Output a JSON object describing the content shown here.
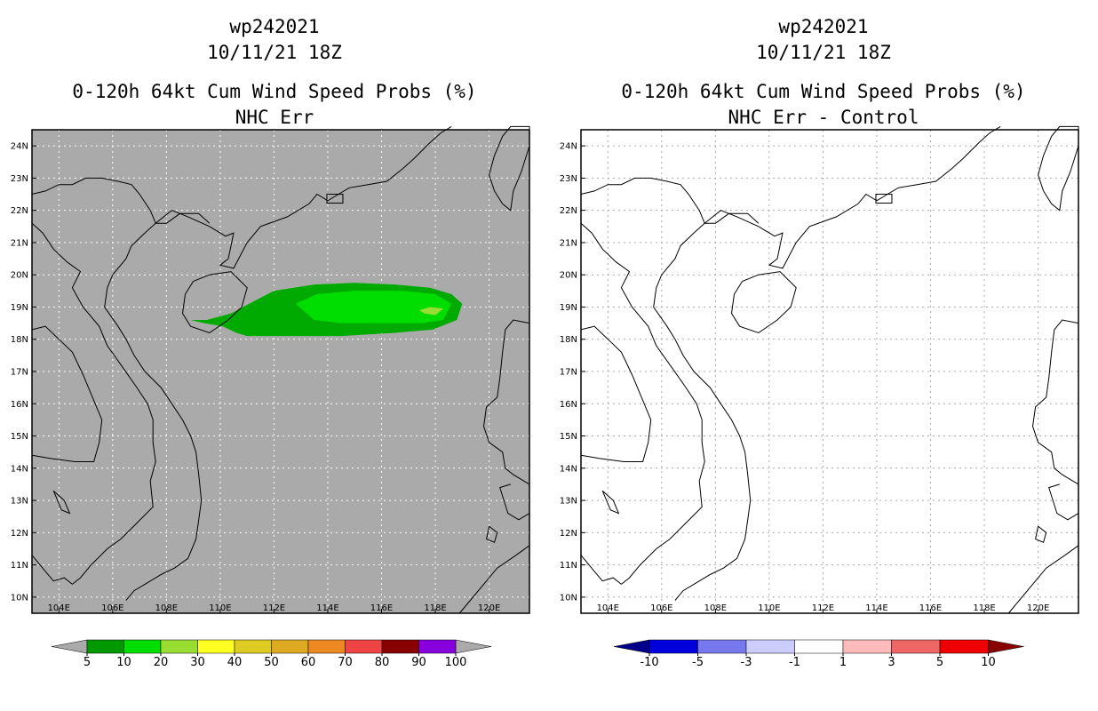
{
  "left_panel": {
    "storm_id": "wp242021",
    "datetime": "10/11/21 18Z",
    "product": "0-120h 64kt Cum Wind Speed Probs (%)",
    "subtitle": "NHC Err",
    "colorbar": {
      "labels": [
        "5",
        "10",
        "20",
        "30",
        "40",
        "50",
        "60",
        "70",
        "80",
        "90",
        "100"
      ],
      "colors": [
        "#009900",
        "#00dd00",
        "#99dd33",
        "#ffff22",
        "#ddcc22",
        "#ddaa22",
        "#ee8822",
        "#ee4444",
        "#880000",
        "#8800dd"
      ],
      "end_color": "#aaaaaa"
    },
    "map_background": "#aaaaaa",
    "probability_field": [
      {
        "level": "5",
        "color": "#00aa00"
      },
      {
        "level": "10",
        "color": "#00dd00"
      },
      {
        "level": "20",
        "color": "#99dd33"
      }
    ]
  },
  "right_panel": {
    "storm_id": "wp242021",
    "datetime": "10/11/21 18Z",
    "product": "0-120h 64kt Cum Wind Speed Probs (%)",
    "subtitle": "NHC Err - Control",
    "colorbar": {
      "labels": [
        "-10",
        "-5",
        "-3",
        "-1",
        "1",
        "3",
        "5",
        "10"
      ],
      "colors": [
        "#0000dd",
        "#7777ee",
        "#ccccff",
        "#ffffff",
        "#ffbbbb",
        "#ee6666",
        "#ee0000"
      ],
      "low_end_color": "#000088",
      "high_end_color": "#880000"
    },
    "map_background": "#ffffff"
  },
  "map": {
    "lat_labels": [
      "24N",
      "23N",
      "22N",
      "21N",
      "20N",
      "19N",
      "18N",
      "17N",
      "16N",
      "15N",
      "14N",
      "13N",
      "12N",
      "11N",
      "10N"
    ],
    "lon_labels": [
      "104E",
      "106E",
      "108E",
      "110E",
      "112E",
      "114E",
      "116E",
      "118E",
      "120E"
    ]
  }
}
